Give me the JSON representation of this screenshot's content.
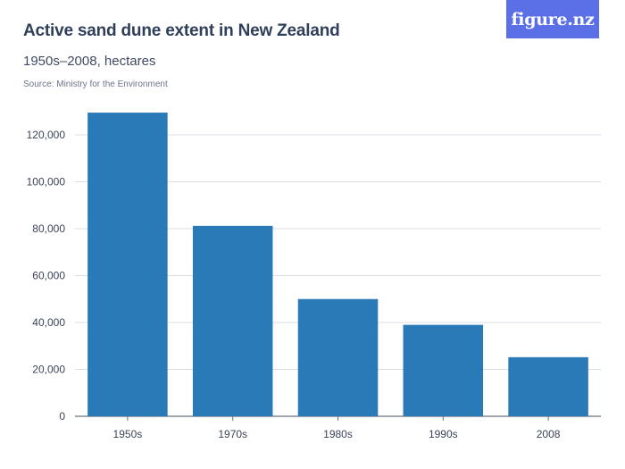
{
  "header": {
    "title": "Active sand dune extent in New Zealand",
    "subtitle": "1950s–2008, hectares",
    "source": "Source: Ministry for the Environment"
  },
  "logo": {
    "text": "figure.nz",
    "color": "#5b6fe6"
  },
  "chart_data": {
    "type": "bar",
    "categories": [
      "1950s",
      "1970s",
      "1980s",
      "1990s",
      "2008"
    ],
    "values": [
      129500,
      81200,
      50000,
      39000,
      25200
    ],
    "yticks": [
      0,
      20000,
      40000,
      60000,
      80000,
      100000,
      120000
    ],
    "ytick_labels": [
      "0",
      "20,000",
      "40,000",
      "60,000",
      "80,000",
      "100,000",
      "120,000"
    ],
    "ylim": [
      0,
      130000
    ],
    "grid": true,
    "bar_color": "#2b7ab8",
    "title": "Active sand dune extent in New Zealand",
    "xlabel": "",
    "ylabel": ""
  }
}
